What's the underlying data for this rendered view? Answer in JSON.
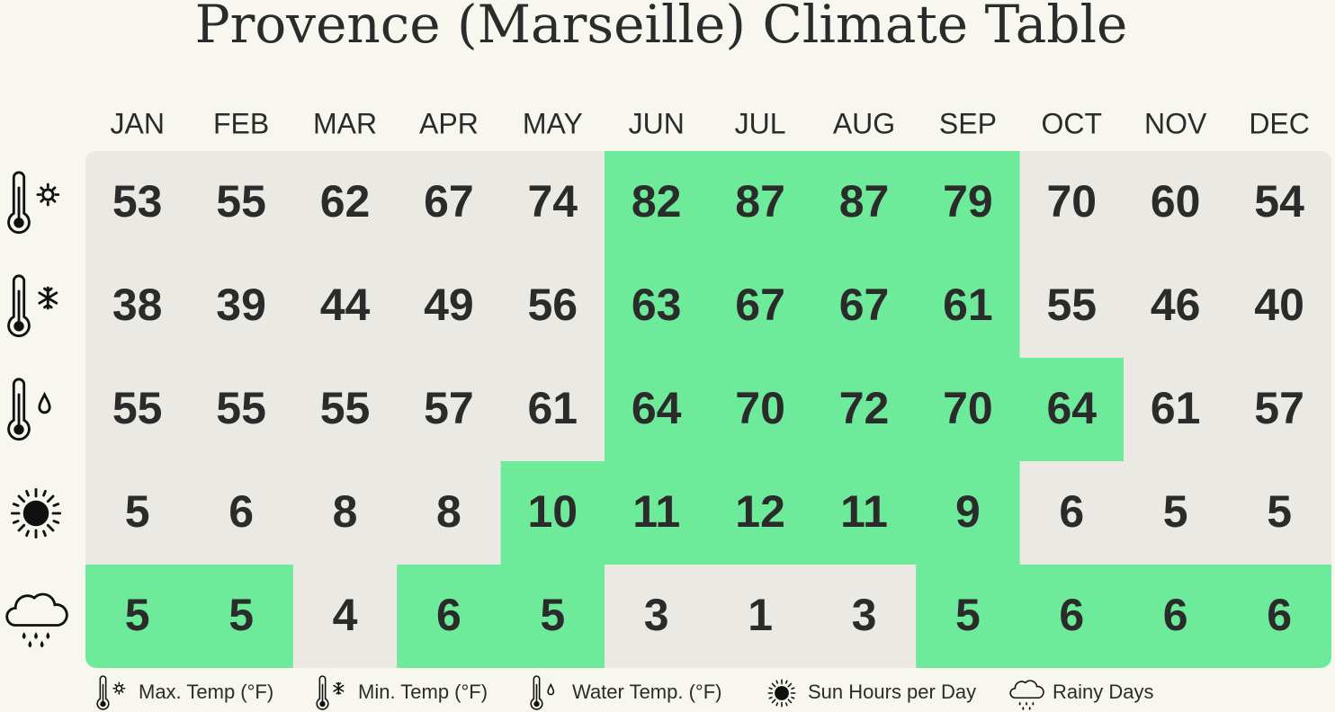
{
  "title": "Provence (Marseille) Climate Table",
  "months": [
    "JAN",
    "FEB",
    "MAR",
    "APR",
    "MAY",
    "JUN",
    "JUL",
    "AUG",
    "SEP",
    "OCT",
    "NOV",
    "DEC"
  ],
  "rows": [
    {
      "values": [
        53,
        55,
        62,
        67,
        74,
        82,
        87,
        87,
        79,
        70,
        60,
        54
      ],
      "highlighted": [
        false,
        false,
        false,
        false,
        false,
        true,
        true,
        true,
        true,
        false,
        false,
        false
      ]
    },
    {
      "values": [
        38,
        39,
        44,
        49,
        56,
        63,
        67,
        67,
        61,
        55,
        46,
        40
      ],
      "highlighted": [
        false,
        false,
        false,
        false,
        false,
        true,
        true,
        true,
        true,
        false,
        false,
        false
      ]
    },
    {
      "values": [
        55,
        55,
        55,
        57,
        61,
        64,
        70,
        72,
        70,
        64,
        61,
        57
      ],
      "highlighted": [
        false,
        false,
        false,
        false,
        false,
        true,
        true,
        true,
        true,
        true,
        false,
        false
      ]
    },
    {
      "values": [
        5,
        6,
        8,
        8,
        10,
        11,
        12,
        11,
        9,
        6,
        5,
        5
      ],
      "highlighted": [
        false,
        false,
        false,
        false,
        true,
        true,
        true,
        true,
        true,
        false,
        false,
        false
      ]
    },
    {
      "values": [
        5,
        5,
        4,
        6,
        5,
        3,
        1,
        3,
        5,
        6,
        6,
        6
      ],
      "highlighted": [
        true,
        true,
        false,
        true,
        true,
        false,
        false,
        false,
        true,
        true,
        true,
        true
      ]
    }
  ],
  "legend": [
    "Max. Temp (°F)",
    "Min. Temp (°F)",
    "Water Temp. (°F)",
    "Sun Hours per Day",
    "Rainy Days"
  ],
  "colors": {
    "highlight": "#6eeb9a",
    "normal": "#ebe9e3"
  }
}
